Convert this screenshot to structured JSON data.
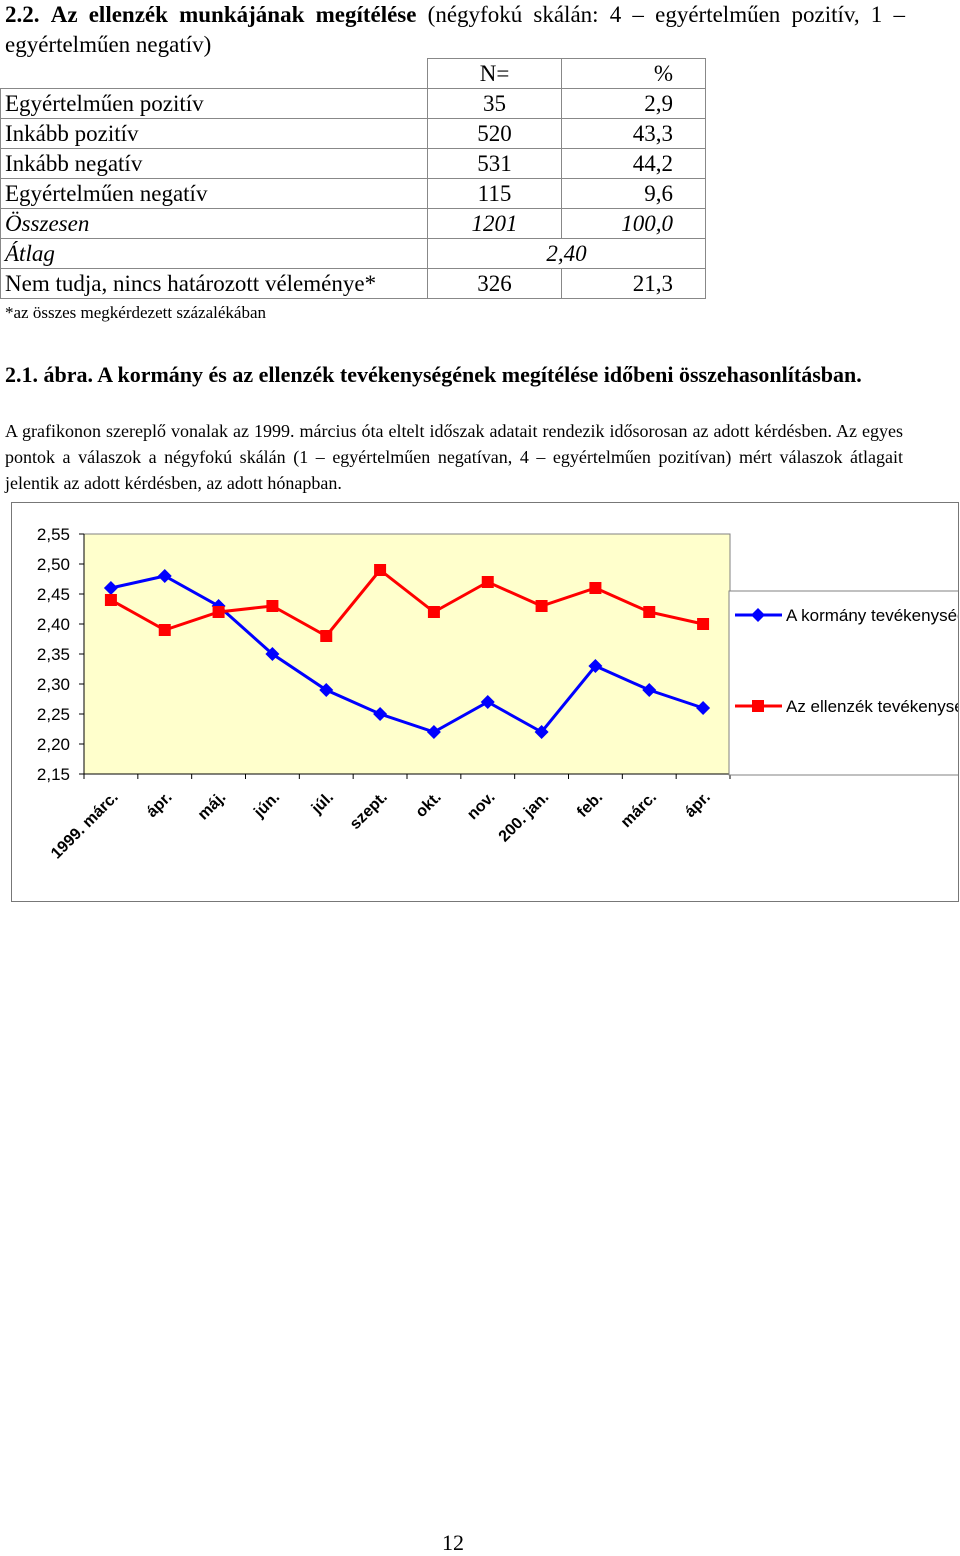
{
  "section": {
    "number": "2.2.",
    "title": "Az ellenzék munkájának megítélése",
    "subtitle": "(négyfokú skálán: 4 – egyértelműen pozitív, 1 – egyértelműen negatív)"
  },
  "table": {
    "headers": [
      "",
      "N=",
      "%"
    ],
    "rows": [
      {
        "label": "Egyértelműen pozitív",
        "n": "35",
        "pct": "2,9"
      },
      {
        "label": "Inkább pozitív",
        "n": "520",
        "pct": "43,3"
      },
      {
        "label": "Inkább negatív",
        "n": "531",
        "pct": "44,2"
      },
      {
        "label": "Egyértelműen negatív",
        "n": "115",
        "pct": "9,6"
      }
    ],
    "total": {
      "label": "Összesen",
      "n": "1201",
      "pct": "100,0"
    },
    "average": {
      "label": "Átlag",
      "value": "2,40"
    },
    "unknown": {
      "label": "Nem tudja, nincs határozott véleménye*",
      "n": "326",
      "pct": "21,3"
    },
    "footnote": "*az összes megkérdezett százalékában"
  },
  "figure": {
    "number": "2.1. ábra.",
    "title": "A kormány és az ellenzék tevékenységének megítélése időbeni összehasonlításban.",
    "description": "A grafikonon szereplő vonalak az 1999. március óta eltelt időszak adatait rendezik idősorosan az adott kérdésben. Az egyes pontok a válaszok a négyfokú skálán (1 – egyértelműen negatívan, 4 – egyértelműen pozitívan) mért válaszok átlagait jelentik az adott kérdésben, az adott hónapban."
  },
  "chart_data": {
    "type": "line",
    "categories": [
      "1999. márc.",
      "ápr.",
      "máj.",
      "jún.",
      "júl.",
      "szept.",
      "okt.",
      "nov.",
      "200. jan.",
      "feb.",
      "márc.",
      "ápr."
    ],
    "series": [
      {
        "name": "A kormány tevékenységének megítélése",
        "color": "#0000ff",
        "marker": "diamond",
        "values": [
          2.46,
          2.48,
          2.43,
          2.35,
          2.29,
          2.25,
          2.22,
          2.27,
          2.22,
          2.33,
          2.29,
          2.26
        ]
      },
      {
        "name": "Az ellenzék tevékenységének megítélése",
        "color": "#ff0000",
        "marker": "square",
        "values": [
          2.44,
          2.39,
          2.42,
          2.43,
          2.38,
          2.49,
          2.42,
          2.47,
          2.43,
          2.46,
          2.42,
          2.4
        ]
      }
    ],
    "ylim": [
      2.15,
      2.55
    ],
    "yticks": [
      "2,55",
      "2,50",
      "2,45",
      "2,40",
      "2,35",
      "2,30",
      "2,25",
      "2,20",
      "2,15"
    ],
    "plot_background": "#ffffcc",
    "grid": false,
    "legend": "right",
    "title": "",
    "xlabel": "",
    "ylabel": ""
  },
  "page_number": "12"
}
